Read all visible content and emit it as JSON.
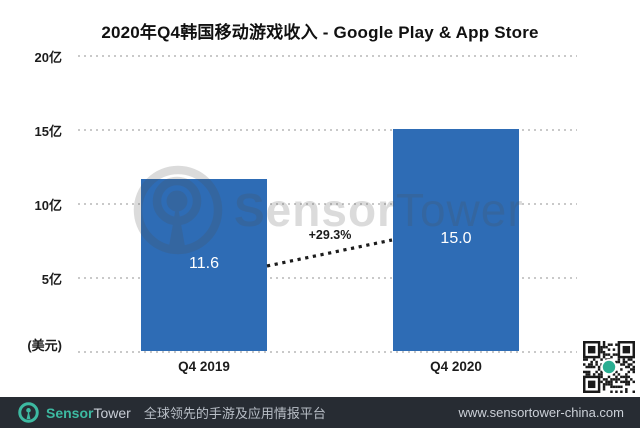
{
  "chart_data": {
    "type": "bar",
    "title": "2020年Q4韩国移动游戏收入 - Google Play & App Store",
    "categories": [
      "Q4 2019",
      "Q4 2020"
    ],
    "values": [
      11.6,
      15.0
    ],
    "value_labels": [
      "11.6",
      "15.0"
    ],
    "unit_label": "(美元)",
    "ylim": [
      0,
      20
    ],
    "y_ticks": [
      {
        "label": "20亿",
        "value": 20
      },
      {
        "label": "15亿",
        "value": 15
      },
      {
        "label": "10亿",
        "value": 10
      },
      {
        "label": "5亿",
        "value": 5
      }
    ],
    "annotation": {
      "text": "+29.3%"
    },
    "bar_color": "#2E6CB5",
    "grid": "dotted-horizontal",
    "legend_position": "none"
  },
  "watermark": {
    "icon": "sensor-tower-logo",
    "text_bold": "Sensor",
    "text_light": "Tower"
  },
  "qr_code": {
    "center_color": "#2AAE92"
  },
  "footer": {
    "brand_teal": "Sensor",
    "brand_gray": "Tower",
    "tagline": "全球领先的手游及应用情报平台",
    "url": "www.sensortower-china.com",
    "bg_color": "#272C33",
    "accent_color": "#3DBAA2"
  }
}
